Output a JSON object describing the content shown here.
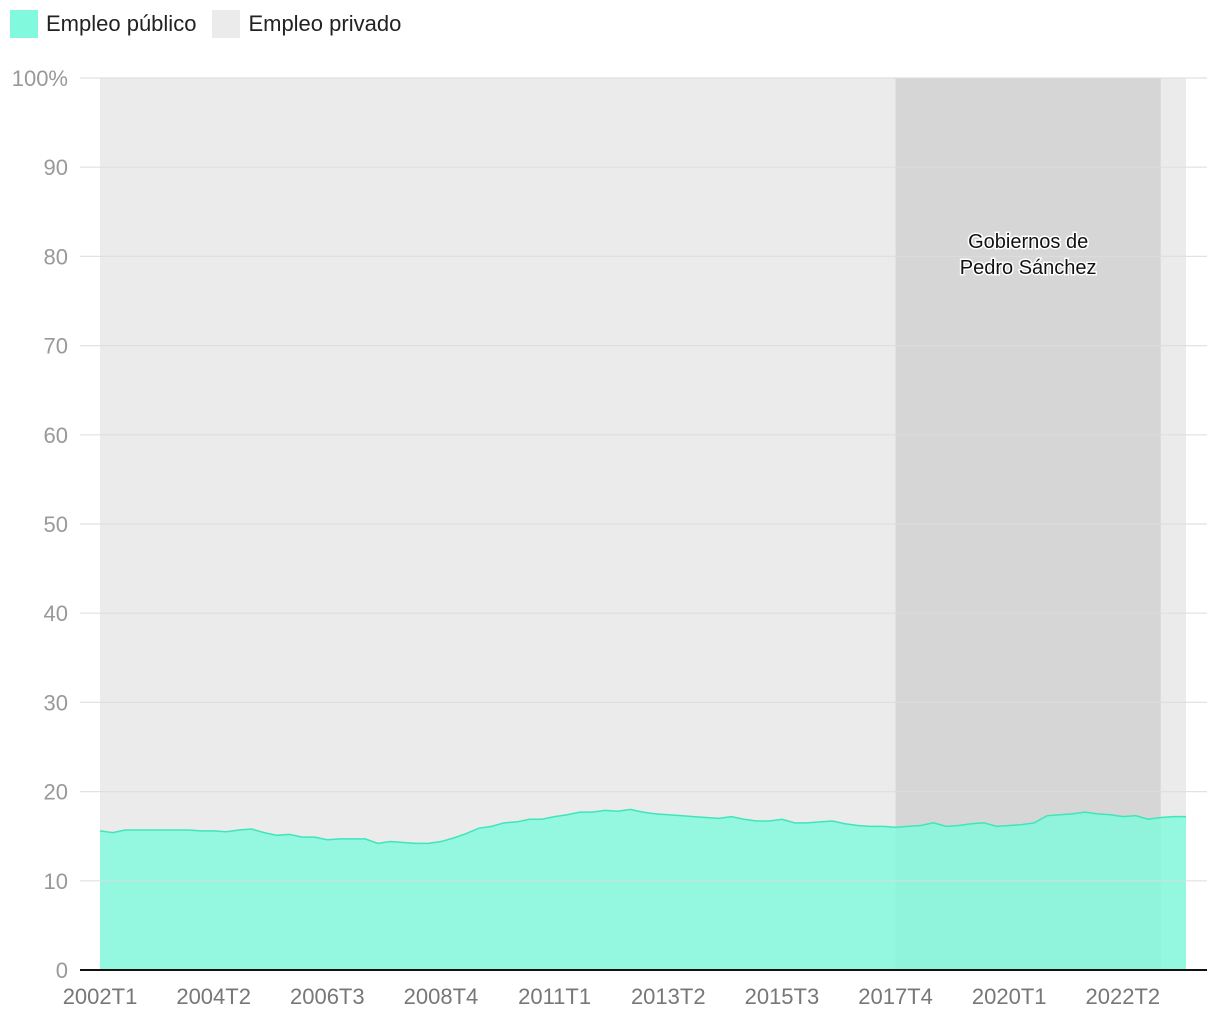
{
  "legend": [
    {
      "label": "Empleo público",
      "color": "#80f9dd"
    },
    {
      "label": "Empleo privado",
      "color": "#ebebeb"
    }
  ],
  "chart_data": {
    "type": "area",
    "stacked": true,
    "ylim": [
      0,
      100
    ],
    "yticks": [
      "0",
      "10",
      "20",
      "30",
      "40",
      "50",
      "60",
      "70",
      "80",
      "90",
      "100%"
    ],
    "x_tick_labels": [
      "2002T1",
      "2004T2",
      "2006T3",
      "2008T4",
      "2011T1",
      "2013T2",
      "2015T3",
      "2017T4",
      "2020T1",
      "2022T2"
    ],
    "x_start": "2002T1",
    "x_end": "2023T1",
    "grid": true,
    "legend_position": "top-left",
    "series": [
      {
        "name": "Empleo público",
        "color": "#80f9dd",
        "values": [
          15.6,
          15.4,
          15.7,
          15.7,
          15.7,
          15.7,
          15.7,
          15.7,
          15.6,
          15.6,
          15.5,
          15.7,
          15.8,
          15.4,
          15.1,
          15.2,
          14.9,
          14.9,
          14.6,
          14.7,
          14.7,
          14.7,
          14.2,
          14.4,
          14.3,
          14.2,
          14.2,
          14.4,
          14.8,
          15.3,
          15.9,
          16.1,
          16.5,
          16.6,
          16.9,
          16.9,
          17.2,
          17.4,
          17.7,
          17.7,
          17.9,
          17.8,
          18.0,
          17.7,
          17.5,
          17.4,
          17.3,
          17.2,
          17.1,
          17.0,
          17.2,
          16.9,
          16.7,
          16.7,
          16.9,
          16.5,
          16.5,
          16.6,
          16.7,
          16.4,
          16.2,
          16.1,
          16.1,
          16.0,
          16.1,
          16.2,
          16.5,
          16.1,
          16.2,
          16.4,
          16.5,
          16.1,
          16.2,
          16.3,
          16.5,
          17.3,
          17.4,
          17.5,
          17.7,
          17.5,
          17.4,
          17.2,
          17.3,
          16.9,
          17.1,
          17.2,
          17.2
        ]
      },
      {
        "name": "Empleo privado",
        "color": "#ebebeb",
        "values_note": ""
      }
    ],
    "annotations": [
      {
        "text_lines": [
          "Gobiernos de",
          "Pedro Sánchez"
        ],
        "from": "2017T4",
        "to": "2023T1",
        "color": "#d6d6d6"
      }
    ]
  }
}
